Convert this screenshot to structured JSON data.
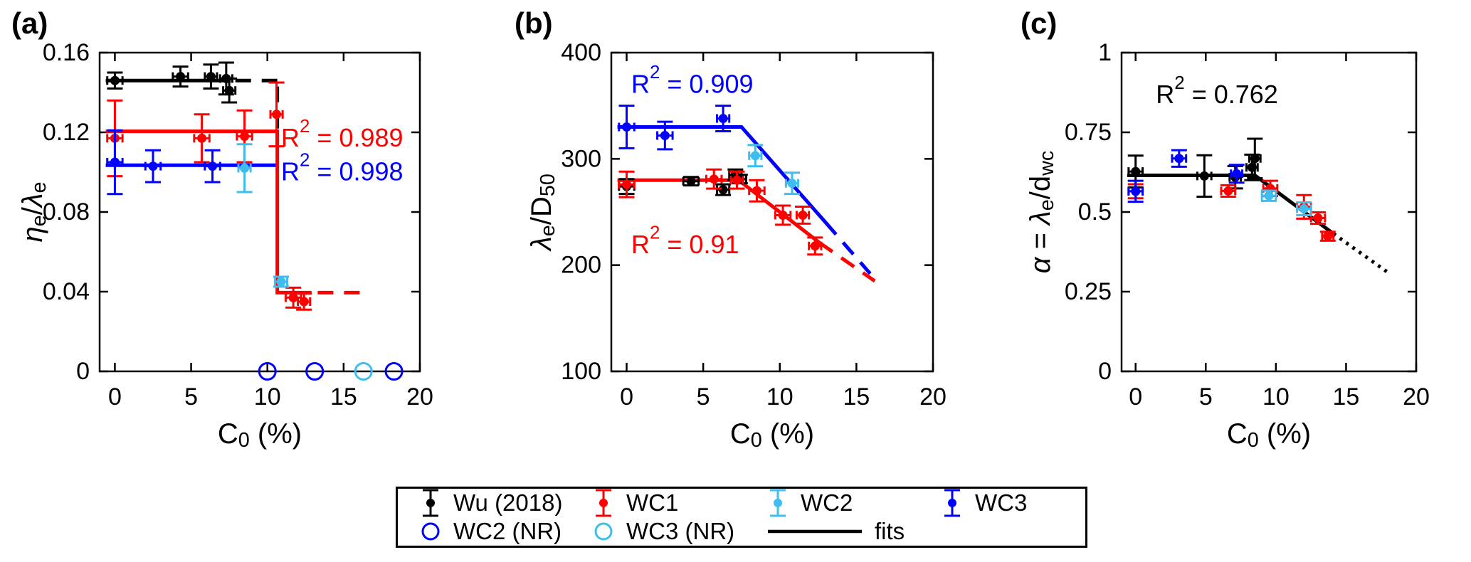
{
  "palette": {
    "black": "#000000",
    "red": "#ff0000",
    "cyan": "#3fbdef",
    "blue": "#0000ff"
  },
  "legend": {
    "entries": [
      {
        "marker": "errorbar",
        "color": "black",
        "label": "Wu (2018)"
      },
      {
        "marker": "errorbar",
        "color": "red",
        "label": "WC1"
      },
      {
        "marker": "errorbar",
        "color": "cyan",
        "label": "WC2"
      },
      {
        "marker": "errorbar",
        "color": "blue",
        "label": "WC3"
      },
      {
        "marker": "circle",
        "color": "blue",
        "label": "WC2 (NR)"
      },
      {
        "marker": "circle",
        "color": "cyan",
        "label": "WC3 (NR)"
      },
      {
        "marker": "line",
        "color": "black",
        "label": "fits"
      }
    ]
  },
  "chart_data": [
    {
      "id": "a",
      "type": "scatter",
      "title": "(a)",
      "xlabel": [
        {
          "t": "C"
        },
        {
          "s": "0"
        },
        {
          "t": " (%)"
        }
      ],
      "ylabel": [
        {
          "t": "η",
          "i": true
        },
        {
          "s": "e"
        },
        {
          "t": "/"
        },
        {
          "t": "λ",
          "i": true
        },
        {
          "s": "e"
        }
      ],
      "xlim": [
        -1,
        20
      ],
      "ylim": [
        0,
        0.16
      ],
      "xticks": [
        [
          0,
          "0"
        ],
        [
          5,
          "5"
        ],
        [
          10,
          "10"
        ],
        [
          15,
          "15"
        ],
        [
          20,
          "20"
        ]
      ],
      "yticks": [
        [
          0,
          "0"
        ],
        [
          0.04,
          "0.04"
        ],
        [
          0.08,
          "0.08"
        ],
        [
          0.12,
          "0.12"
        ],
        [
          0.16,
          "0.16"
        ]
      ],
      "series": [
        {
          "name": "Wu (2018)",
          "color": "black",
          "points": [
            [
              0,
              0.146,
              0.004,
              0.5
            ],
            [
              4.3,
              0.148,
              0.005,
              0.5
            ],
            [
              6.3,
              0.148,
              0.006,
              0.4
            ],
            [
              7.3,
              0.147,
              0.008,
              0.4
            ],
            [
              7.5,
              0.141,
              0.006,
              0.4
            ]
          ]
        },
        {
          "name": "WC1",
          "color": "red",
          "points": [
            [
              0,
              0.117,
              0.019,
              0.5
            ],
            [
              5.7,
              0.117,
              0.012,
              0.5
            ],
            [
              8.5,
              0.118,
              0.013,
              0.5
            ],
            [
              10.6,
              0.129,
              0.016,
              0.4
            ],
            [
              11.7,
              0.037,
              0.005,
              0.5
            ],
            [
              12.4,
              0.035,
              0.004,
              0.4
            ]
          ]
        },
        {
          "name": "WC2",
          "color": "cyan",
          "points": [
            [
              8.5,
              0.102,
              0.012,
              0.4
            ],
            [
              10.9,
              0.045,
              0.0025,
              0.4
            ]
          ]
        },
        {
          "name": "WC3",
          "color": "blue",
          "points": [
            [
              0,
              0.105,
              0.016,
              0.5
            ],
            [
              2.5,
              0.103,
              0.008,
              0.5
            ],
            [
              6.4,
              0.103,
              0.008,
              0.5
            ]
          ]
        }
      ],
      "nr_circles": [
        {
          "name": "WC2 (NR)",
          "color": "blue",
          "y": 0,
          "x": [
            10.0,
            13.1,
            18.3
          ]
        },
        {
          "name": "WC3 (NR)",
          "color": "cyan",
          "y": 0,
          "x": [
            16.3
          ]
        }
      ],
      "fits": [
        {
          "color": "black",
          "style": "solid",
          "points": [
            [
              -0.6,
              0.146
            ],
            [
              7.6,
              0.146
            ]
          ]
        },
        {
          "color": "black",
          "style": "dashed",
          "points": [
            [
              7.9,
              0.146
            ],
            [
              10.65,
              0.146
            ]
          ]
        },
        {
          "color": "black",
          "style": "dashed",
          "points": [
            [
              10.65,
              0.143
            ],
            [
              10.65,
              0.118
            ]
          ]
        },
        {
          "color": "blue",
          "style": "solid",
          "points": [
            [
              -0.6,
              0.1035
            ],
            [
              10.65,
              0.1035
            ]
          ]
        },
        {
          "color": "red",
          "style": "solid",
          "points": [
            [
              -0.6,
              0.1205
            ],
            [
              10.65,
              0.1205
            ],
            [
              10.65,
              0.0395
            ],
            [
              12.9,
              0.0395
            ]
          ]
        },
        {
          "color": "red",
          "style": "dashed",
          "points": [
            [
              13.3,
              0.0395
            ],
            [
              16.4,
              0.0395
            ]
          ]
        }
      ],
      "annotations": [
        {
          "segs": [
            {
              "t": "R"
            },
            {
              "p": "2"
            },
            {
              "t": " = 0.989"
            }
          ],
          "color": "red",
          "x": 10.9,
          "y": 0.1175,
          "anchor": "start"
        },
        {
          "segs": [
            {
              "t": "R"
            },
            {
              "p": "2"
            },
            {
              "t": " = 0.998"
            }
          ],
          "color": "blue",
          "x": 10.9,
          "y": 0.1005,
          "anchor": "start"
        }
      ]
    },
    {
      "id": "b",
      "type": "scatter",
      "title": "(b)",
      "xlabel": [
        {
          "t": "C"
        },
        {
          "s": "0"
        },
        {
          "t": " (%)"
        }
      ],
      "ylabel": [
        {
          "t": "λ",
          "i": true
        },
        {
          "s": "e"
        },
        {
          "t": "/D"
        },
        {
          "s": "50"
        }
      ],
      "xlim": [
        -1,
        20
      ],
      "ylim": [
        100,
        400
      ],
      "xticks": [
        [
          0,
          "0"
        ],
        [
          5,
          "5"
        ],
        [
          10,
          "10"
        ],
        [
          15,
          "15"
        ],
        [
          20,
          "20"
        ]
      ],
      "yticks": [
        [
          100,
          "100"
        ],
        [
          200,
          "200"
        ],
        [
          300,
          "300"
        ],
        [
          400,
          "400"
        ]
      ],
      "series": [
        {
          "name": "Wu (2018)",
          "color": "black",
          "points": [
            [
              0,
              274,
              7,
              0.5
            ],
            [
              4.2,
              279,
              4,
              0.5
            ],
            [
              6.3,
              271,
              5,
              0.4
            ],
            [
              7.1,
              285,
              5,
              0.4
            ],
            [
              7.4,
              281,
              4,
              0.4
            ]
          ]
        },
        {
          "name": "WC1",
          "color": "red",
          "points": [
            [
              0,
              276,
              12,
              0.5
            ],
            [
              5.7,
              281,
              9,
              0.5
            ],
            [
              7.2,
              280,
              8,
              0.4
            ],
            [
              8.5,
              270,
              10,
              0.5
            ],
            [
              10.2,
              247,
              9,
              0.5
            ],
            [
              11.5,
              247,
              8,
              0.4
            ],
            [
              12.3,
              218,
              8,
              0.4
            ]
          ]
        },
        {
          "name": "WC2",
          "color": "cyan",
          "points": [
            [
              8.4,
              303,
              10,
              0.4
            ],
            [
              10.8,
              277,
              10,
              0.4
            ]
          ]
        },
        {
          "name": "WC3",
          "color": "blue",
          "points": [
            [
              0,
              330,
              20,
              0.5
            ],
            [
              2.5,
              322,
              13,
              0.5
            ],
            [
              6.3,
              338,
              12,
              0.4
            ]
          ]
        }
      ],
      "nr_circles": [],
      "fits": [
        {
          "color": "blue",
          "style": "solid",
          "points": [
            [
              -0.6,
              330
            ],
            [
              7.5,
              330
            ],
            [
              13.0,
              240
            ]
          ]
        },
        {
          "color": "blue",
          "style": "dashed",
          "points": [
            [
              13.0,
              240
            ],
            [
              15.9,
              192
            ]
          ]
        },
        {
          "color": "red",
          "style": "solid",
          "points": [
            [
              -0.6,
              280
            ],
            [
              7.3,
              280
            ],
            [
              12.6,
              221
            ]
          ]
        },
        {
          "color": "red",
          "style": "dashed",
          "points": [
            [
              12.6,
              221
            ],
            [
              16.2,
              185
            ]
          ]
        }
      ],
      "annotations": [
        {
          "segs": [
            {
              "t": "R"
            },
            {
              "p": "2"
            },
            {
              "t": " = 0.909"
            }
          ],
          "color": "blue",
          "x": 0.3,
          "y": 371,
          "anchor": "start"
        },
        {
          "segs": [
            {
              "t": "R"
            },
            {
              "p": "2"
            },
            {
              "t": " = 0.91"
            }
          ],
          "color": "red",
          "x": 0.3,
          "y": 220,
          "anchor": "start"
        }
      ]
    },
    {
      "id": "c",
      "type": "scatter",
      "title": "(c)",
      "xlabel": [
        {
          "t": "C"
        },
        {
          "s": "0"
        },
        {
          "t": " (%)"
        }
      ],
      "ylabel": [
        {
          "t": "α",
          "i": true
        },
        {
          "t": " = "
        },
        {
          "t": "λ",
          "i": true
        },
        {
          "s": "e"
        },
        {
          "t": "/d"
        },
        {
          "s": "wc"
        }
      ],
      "xlim": [
        -1,
        20
      ],
      "ylim": [
        0,
        1
      ],
      "xticks": [
        [
          0,
          "0"
        ],
        [
          5,
          "5"
        ],
        [
          10,
          "10"
        ],
        [
          15,
          "15"
        ],
        [
          20,
          "20"
        ]
      ],
      "yticks": [
        [
          0,
          "0"
        ],
        [
          0.25,
          "0.25"
        ],
        [
          0.5,
          "0.5"
        ],
        [
          0.75,
          "0.75"
        ],
        [
          1,
          "1"
        ]
      ],
      "series": [
        {
          "name": "Wu (2018)",
          "color": "black",
          "points": [
            [
              0,
              0.627,
              0.05,
              0.5
            ],
            [
              4.9,
              0.613,
              0.065,
              0.5
            ],
            [
              7.1,
              0.609,
              0.035,
              0.4
            ],
            [
              8.3,
              0.64,
              0.04,
              0.4
            ],
            [
              8.5,
              0.668,
              0.062,
              0.4
            ]
          ]
        },
        {
          "name": "WC1",
          "color": "red",
          "points": [
            [
              0,
              0.565,
              0.022,
              0.5
            ],
            [
              6.6,
              0.566,
              0.018,
              0.5
            ],
            [
              9.6,
              0.574,
              0.024,
              0.5
            ],
            [
              12.0,
              0.516,
              0.037,
              0.5
            ],
            [
              13.0,
              0.481,
              0.018,
              0.5
            ],
            [
              13.7,
              0.424,
              0.014,
              0.4
            ]
          ]
        },
        {
          "name": "WC2",
          "color": "cyan",
          "points": [
            [
              9.5,
              0.551,
              0.016,
              0.5
            ],
            [
              12.0,
              0.51,
              0.02,
              0.5
            ]
          ]
        },
        {
          "name": "WC3",
          "color": "blue",
          "points": [
            [
              0,
              0.565,
              0.033,
              0.5
            ],
            [
              3.1,
              0.668,
              0.026,
              0.5
            ],
            [
              7.2,
              0.62,
              0.028,
              0.4
            ]
          ]
        }
      ],
      "nr_circles": [],
      "fits": [
        {
          "color": "black",
          "style": "solid",
          "points": [
            [
              -0.6,
              0.615
            ],
            [
              8.5,
              0.615
            ],
            [
              14.1,
              0.432
            ]
          ]
        },
        {
          "color": "black",
          "style": "dotted",
          "points": [
            [
              14.1,
              0.432
            ],
            [
              17.9,
              0.313
            ]
          ]
        }
      ],
      "annotations": [
        {
          "segs": [
            {
              "t": "R"
            },
            {
              "p": "2"
            },
            {
              "t": " = 0.762"
            }
          ],
          "color": "black",
          "x": 5.8,
          "y": 0.87,
          "anchor": "middle"
        }
      ]
    }
  ]
}
